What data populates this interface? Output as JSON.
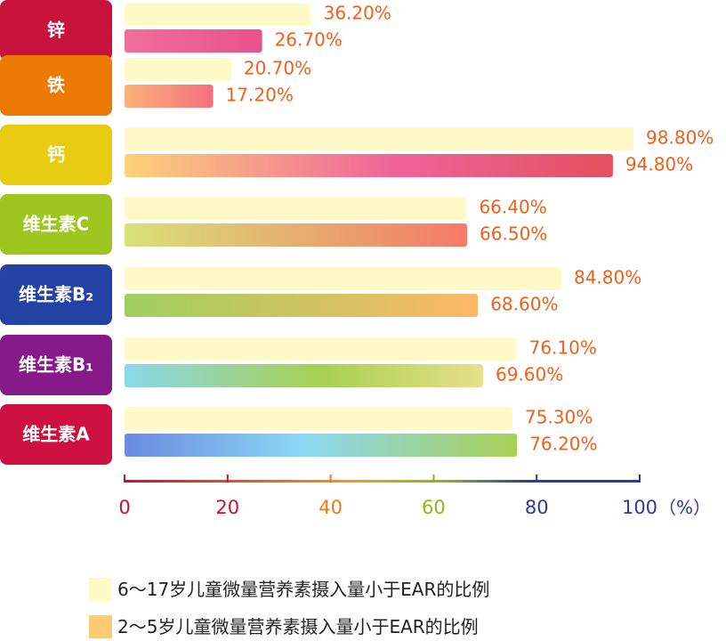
{
  "chart_data": {
    "type": "bar",
    "orientation": "horizontal",
    "categories": [
      "锌",
      "铁",
      "钙",
      "维生素C",
      "维生素B₂",
      "维生素B₁",
      "维生素A"
    ],
    "category_colors": [
      "#c8143c",
      "#ee7a06",
      "#e8cc12",
      "#9ec61e",
      "#2342a4",
      "#861a88",
      "#cc1040"
    ],
    "series": [
      {
        "name": "6～17岁儿童微量营养素摄入量小于EAR的比例",
        "values": [
          36.2,
          20.7,
          98.8,
          66.4,
          84.8,
          76.1,
          75.3
        ],
        "color": "#fdfac8"
      },
      {
        "name": "2～5岁儿童微量营养素摄入量小于EAR的比例",
        "values": [
          26.7,
          17.2,
          94.8,
          66.5,
          68.6,
          69.6,
          76.2
        ],
        "color": "#fdcb74"
      }
    ],
    "value_labels": [
      [
        "36.20%",
        "20.70%",
        "98.80%",
        "66.40%",
        "84.80%",
        "76.10%",
        "75.30%"
      ],
      [
        "26.70%",
        "17.20%",
        "94.80%",
        "66.50%",
        "68.60%",
        "69.60%",
        "76.20%"
      ]
    ],
    "xlim": [
      0,
      100
    ],
    "xticks": [
      "0",
      "20",
      "40",
      "60",
      "80",
      "100"
    ],
    "xtick_colors": [
      "#cc1030",
      "#cc1030",
      "#f07a10",
      "#8ab81a",
      "#303a98",
      "#303a98"
    ],
    "xunit": "（%）",
    "label_color": "#f0601a",
    "legend_position": "bottom-left"
  }
}
